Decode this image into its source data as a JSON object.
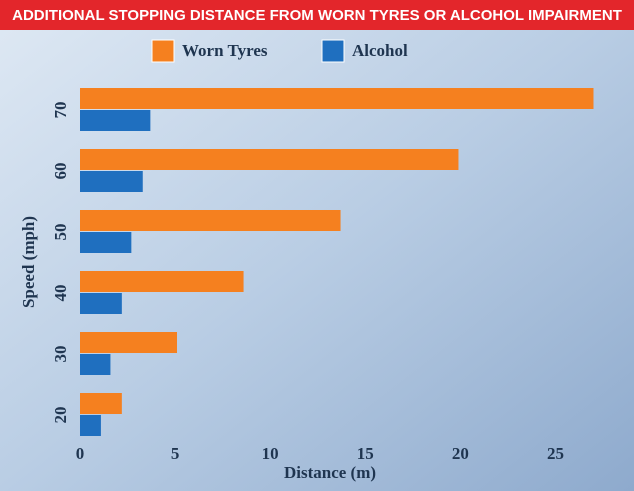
{
  "chart_data": {
    "type": "barh",
    "title": "ADDITIONAL STOPPING DISTANCE FROM WORN TYRES  OR ALCOHOL IMPAIRMENT",
    "x_label": "Distance (m)",
    "y_label": "Speed (mph)",
    "categories": [
      "70",
      "60",
      "50",
      "40",
      "30",
      "20"
    ],
    "series": [
      {
        "name": "Worn Tyres",
        "color": "#f5801f",
        "values": [
          27.0,
          19.9,
          13.7,
          8.6,
          5.1,
          2.2
        ]
      },
      {
        "name": "Alcohol",
        "color": "#1f6fbf",
        "values": [
          3.7,
          3.3,
          2.7,
          2.2,
          1.6,
          1.1
        ]
      }
    ],
    "xlim": [
      0,
      27.5
    ],
    "xticks": [
      0,
      5,
      10,
      15,
      20,
      25
    ]
  }
}
